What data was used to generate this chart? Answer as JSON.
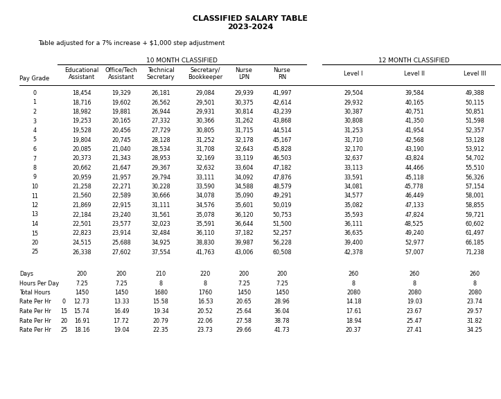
{
  "title1": "CLASSIFIED SALARY TABLE",
  "title2": "2023-2024",
  "subtitle": "Table adjusted for a 7% increase + $1,000 step adjustment",
  "header_10m": "10 MONTH CLASSIFIED",
  "header_12m": "12 MONTH CLASSIFIED",
  "col_headers_10month_line1": [
    "Educational",
    "Office/Tech",
    "Technical",
    "Secretary/",
    "Nurse",
    "Nurse"
  ],
  "col_headers_10month_line2": [
    "Assistant",
    "Assistant",
    "Secretary",
    "Bookkeeper",
    "LPN",
    "RN"
  ],
  "col_headers_12month_line1": [
    "Level I",
    "Level II",
    "Level III"
  ],
  "pay_grade_label": "Pay Grade",
  "pay_grades": [
    "0",
    "1",
    "2",
    "3",
    "4",
    "5",
    "6",
    "7",
    "8",
    "9",
    "10",
    "11",
    "12",
    "13",
    "14",
    "15",
    "20",
    "25"
  ],
  "data_10month": [
    [
      18454,
      19329,
      26181,
      29084,
      29939,
      41997
    ],
    [
      18716,
      19602,
      26562,
      29501,
      30375,
      42614
    ],
    [
      18982,
      19881,
      26944,
      29931,
      30814,
      43239
    ],
    [
      19253,
      20165,
      27332,
      30366,
      31262,
      43868
    ],
    [
      19528,
      20456,
      27729,
      30805,
      31715,
      44514
    ],
    [
      19804,
      20745,
      28128,
      31252,
      32178,
      45167
    ],
    [
      20085,
      21040,
      28534,
      31708,
      32643,
      45828
    ],
    [
      20373,
      21343,
      28953,
      32169,
      33119,
      46503
    ],
    [
      20662,
      21647,
      29367,
      32632,
      33604,
      47182
    ],
    [
      20959,
      21957,
      29794,
      33111,
      34092,
      47876
    ],
    [
      21258,
      22271,
      30228,
      33590,
      34588,
      48579
    ],
    [
      21560,
      22589,
      30666,
      34078,
      35090,
      49291
    ],
    [
      21869,
      22915,
      31111,
      34576,
      35601,
      50019
    ],
    [
      22184,
      23240,
      31561,
      35078,
      36120,
      50753
    ],
    [
      22501,
      23577,
      32023,
      35591,
      36644,
      51500
    ],
    [
      22823,
      23914,
      32484,
      36110,
      37182,
      52257
    ],
    [
      24515,
      25688,
      34925,
      38830,
      39987,
      56228
    ],
    [
      26338,
      27602,
      37554,
      41763,
      43006,
      60508
    ]
  ],
  "data_12month": [
    [
      29504,
      39584,
      49388
    ],
    [
      29932,
      40165,
      50115
    ],
    [
      30387,
      40751,
      50851
    ],
    [
      30808,
      41350,
      51598
    ],
    [
      31253,
      41954,
      52357
    ],
    [
      31710,
      42568,
      53128
    ],
    [
      32170,
      43190,
      53912
    ],
    [
      32637,
      43824,
      54702
    ],
    [
      33113,
      44466,
      55510
    ],
    [
      33591,
      45118,
      56326
    ],
    [
      34081,
      45778,
      57154
    ],
    [
      34577,
      46449,
      58001
    ],
    [
      35082,
      47133,
      58855
    ],
    [
      35593,
      47824,
      59721
    ],
    [
      36111,
      48525,
      60602
    ],
    [
      36635,
      49240,
      61497
    ],
    [
      39400,
      52977,
      66185
    ],
    [
      42378,
      57007,
      71238
    ]
  ],
  "footer_row_labels": [
    "Days",
    "Hours Per Day",
    "Total Hours",
    "Rate Per Hr",
    "Rate Per Hr",
    "Rate Per Hr",
    "Rate Per Hr"
  ],
  "footer_row_sublabels": [
    "",
    "",
    "",
    "0",
    "15",
    "20",
    "25"
  ],
  "footer_10month": [
    [
      "200",
      "200",
      "210",
      "220",
      "200",
      "200"
    ],
    [
      "7.25",
      "7.25",
      "8",
      "8",
      "7.25",
      "7.25"
    ],
    [
      "1450",
      "1450",
      "1680",
      "1760",
      "1450",
      "1450"
    ],
    [
      "12.73",
      "13.33",
      "15.58",
      "16.53",
      "20.65",
      "28.96"
    ],
    [
      "15.74",
      "16.49",
      "19.34",
      "20.52",
      "25.64",
      "36.04"
    ],
    [
      "16.91",
      "17.72",
      "20.79",
      "22.06",
      "27.58",
      "38.78"
    ],
    [
      "18.16",
      "19.04",
      "22.35",
      "23.73",
      "29.66",
      "41.73"
    ]
  ],
  "footer_12month": [
    [
      "260",
      "260",
      "260"
    ],
    [
      "8",
      "8",
      "8"
    ],
    [
      "2080",
      "2080",
      "2080"
    ],
    [
      "14.18",
      "19.03",
      "23.74"
    ],
    [
      "17.61",
      "23.67",
      "29.57"
    ],
    [
      "18.94",
      "25.47",
      "31.82"
    ],
    [
      "20.37",
      "27.41",
      "34.25"
    ]
  ],
  "fig_width": 7.23,
  "fig_height": 5.76,
  "dpi": 100
}
